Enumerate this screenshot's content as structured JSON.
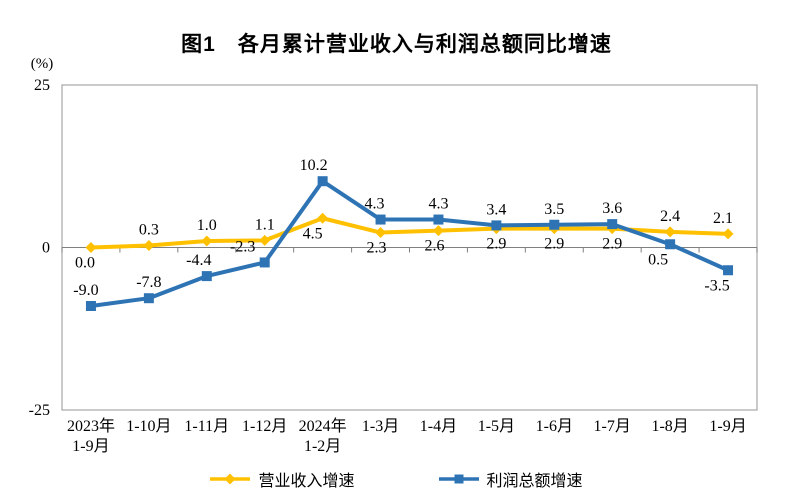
{
  "title": "图1　各月累计营业收入与利润总额同比增速",
  "unit_label": "(%)",
  "chart_data": {
    "type": "line",
    "categories": [
      [
        "2023年",
        "1-9月"
      ],
      [
        "1-10月"
      ],
      [
        "1-11月"
      ],
      [
        "1-12月"
      ],
      [
        "2024年",
        "1-2月"
      ],
      [
        "1-3月"
      ],
      [
        "1-4月"
      ],
      [
        "1-5月"
      ],
      [
        "1-6月"
      ],
      [
        "1-7月"
      ],
      [
        "1-8月"
      ],
      [
        "1-9月"
      ]
    ],
    "series": [
      {
        "name": "营业收入增速",
        "color": "#FFC000",
        "marker": "diamond",
        "values": [
          0.0,
          0.3,
          1.0,
          1.1,
          4.5,
          2.3,
          2.6,
          2.9,
          2.9,
          2.9,
          2.4,
          2.1
        ],
        "label_side": [
          "below",
          "above",
          "above",
          "above",
          "below",
          "below",
          "below",
          "below",
          "below",
          "below",
          "above",
          "above"
        ],
        "label_dx": [
          -6,
          0,
          0,
          0,
          -10,
          -4,
          -4,
          0,
          0,
          0,
          0,
          -5
        ]
      },
      {
        "name": "利润总额增速",
        "color": "#2E74B5",
        "marker": "square",
        "values": [
          -9.0,
          -7.8,
          -4.4,
          -2.3,
          10.2,
          4.3,
          4.3,
          3.4,
          3.5,
          3.6,
          0.5,
          -3.5
        ],
        "label_side": [
          "above",
          "above",
          "above",
          "above",
          "above",
          "above",
          "above",
          "above",
          "above",
          "above",
          "below",
          "below"
        ],
        "label_dx": [
          -5,
          0,
          -8,
          -22,
          -9,
          -6,
          0,
          0,
          0,
          0,
          -12,
          -11
        ]
      }
    ],
    "ylim": [
      -25,
      25
    ],
    "yticks": [
      25,
      0,
      -25
    ],
    "grid": "off",
    "legend_position": "bottom",
    "colors": {
      "border": "#A6A6A6",
      "axis": "#808080"
    }
  }
}
